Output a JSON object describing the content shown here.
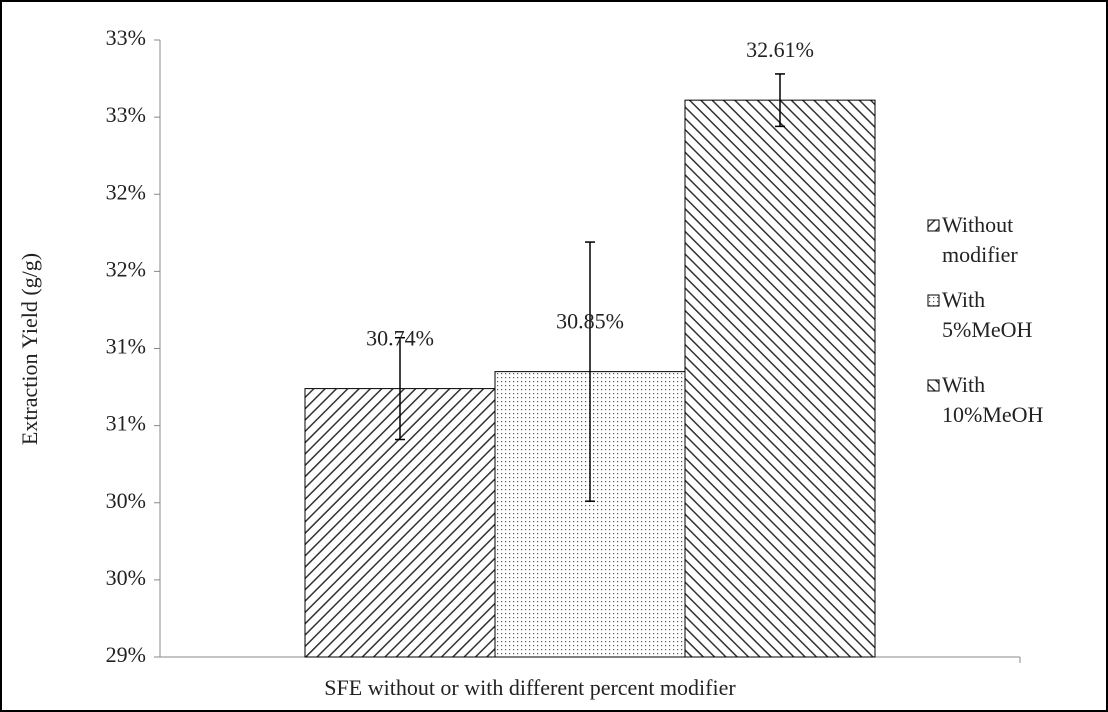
{
  "chart_data": {
    "type": "bar",
    "y_label": "Extraction Yield (g/g)",
    "x_label": "SFE without or with different percent modifier",
    "categories": [
      null
    ],
    "series": [
      {
        "name": "Without modifier",
        "color": "#000000",
        "pattern": "forward-hatch",
        "values": [
          30.74
        ],
        "value_labels": [
          "30.74%"
        ],
        "errors": [
          0.33
        ]
      },
      {
        "name": "With 5%MeOH",
        "color": "#000000",
        "pattern": "dots",
        "values": [
          30.85
        ],
        "value_labels": [
          "30.85%"
        ],
        "errors": [
          0.84
        ]
      },
      {
        "name": "With 10%MeOH",
        "color": "#000000",
        "pattern": "back-hatch",
        "values": [
          32.61
        ],
        "value_labels": [
          "32.61%"
        ],
        "errors": [
          0.17
        ]
      }
    ],
    "ylim": [
      29,
      33
    ],
    "yticks": [
      {
        "value": 29,
        "label": "29%"
      },
      {
        "value": 29.5,
        "label": "30%"
      },
      {
        "value": 30,
        "label": "30%"
      },
      {
        "value": 30.5,
        "label": "31%"
      },
      {
        "value": 31,
        "label": "31%"
      },
      {
        "value": 31.5,
        "label": "32%"
      },
      {
        "value": 32,
        "label": "32%"
      },
      {
        "value": 32.5,
        "label": "33%"
      },
      {
        "value": 33,
        "label": "33%"
      }
    ],
    "grid": false,
    "legend": "right"
  }
}
